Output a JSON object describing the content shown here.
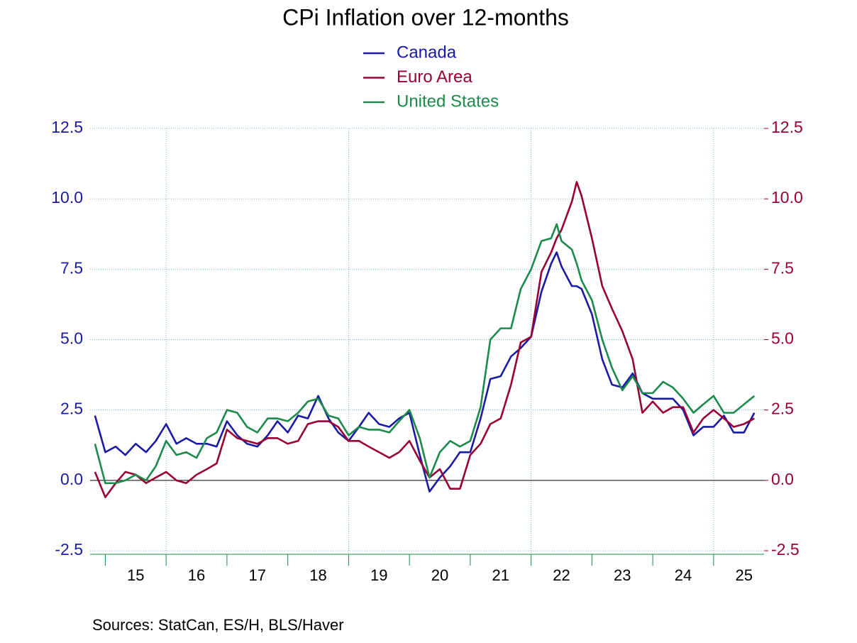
{
  "chart_data": {
    "type": "line",
    "title": "CPi Inflation over 12-months",
    "source": "Sources:  StatCan, ES/H, BLS/Haver",
    "x": [
      2014.83,
      2015.0,
      2015.17,
      2015.33,
      2015.5,
      2015.67,
      2015.83,
      2016.0,
      2016.17,
      2016.33,
      2016.5,
      2016.67,
      2016.83,
      2017.0,
      2017.17,
      2017.33,
      2017.5,
      2017.67,
      2017.83,
      2018.0,
      2018.17,
      2018.33,
      2018.5,
      2018.67,
      2018.83,
      2019.0,
      2019.17,
      2019.33,
      2019.5,
      2019.67,
      2019.83,
      2020.0,
      2020.17,
      2020.33,
      2020.5,
      2020.67,
      2020.83,
      2021.0,
      2021.17,
      2021.33,
      2021.5,
      2021.67,
      2021.83,
      2022.0,
      2022.17,
      2022.33,
      2022.42,
      2022.5,
      2022.67,
      2022.75,
      2022.83,
      2023.0,
      2023.17,
      2023.33,
      2023.5,
      2023.67,
      2023.83,
      2024.0,
      2024.17,
      2024.33,
      2024.5,
      2024.67,
      2024.83,
      2025.0,
      2025.17,
      2025.33,
      2025.5,
      2025.67
    ],
    "series": [
      {
        "name": "Canada",
        "color": "#1a1aa6",
        "values": [
          2.3,
          1.0,
          1.2,
          0.9,
          1.3,
          1.0,
          1.4,
          2.0,
          1.3,
          1.5,
          1.3,
          1.3,
          1.2,
          2.1,
          1.6,
          1.3,
          1.2,
          1.6,
          2.1,
          1.7,
          2.3,
          2.2,
          3.0,
          2.2,
          1.7,
          1.4,
          1.9,
          2.4,
          2.0,
          1.9,
          2.2,
          2.4,
          0.9,
          -0.4,
          0.1,
          0.5,
          1.0,
          1.0,
          2.2,
          3.6,
          3.7,
          4.4,
          4.7,
          5.1,
          6.7,
          7.7,
          8.1,
          7.6,
          6.9,
          6.9,
          6.8,
          5.9,
          4.3,
          3.4,
          3.3,
          3.8,
          3.1,
          2.9,
          2.9,
          2.9,
          2.5,
          1.6,
          1.9,
          1.9,
          2.3,
          1.7,
          1.7,
          2.4
        ]
      },
      {
        "name": "Euro Area",
        "color": "#990033",
        "axis": "y2",
        "values": [
          0.3,
          -0.6,
          -0.1,
          0.3,
          0.2,
          -0.1,
          0.1,
          0.3,
          0.0,
          -0.1,
          0.2,
          0.4,
          0.6,
          1.8,
          1.5,
          1.4,
          1.3,
          1.5,
          1.5,
          1.3,
          1.4,
          2.0,
          2.1,
          2.1,
          1.9,
          1.4,
          1.4,
          1.2,
          1.0,
          0.8,
          1.0,
          1.4,
          0.7,
          0.1,
          0.4,
          -0.3,
          -0.3,
          0.9,
          1.3,
          2.0,
          2.2,
          3.4,
          4.9,
          5.1,
          7.4,
          8.1,
          8.6,
          8.9,
          9.9,
          10.6,
          10.1,
          8.6,
          6.9,
          6.1,
          5.3,
          4.3,
          2.4,
          2.8,
          2.4,
          2.6,
          2.6,
          1.7,
          2.2,
          2.5,
          2.2,
          1.9,
          2.0,
          2.2
        ]
      },
      {
        "name": "United States",
        "color": "#1b8a4a",
        "values": [
          1.3,
          -0.1,
          -0.1,
          0.0,
          0.2,
          0.0,
          0.5,
          1.4,
          0.9,
          1.0,
          0.8,
          1.5,
          1.7,
          2.5,
          2.4,
          1.9,
          1.7,
          2.2,
          2.2,
          2.1,
          2.4,
          2.8,
          2.9,
          2.3,
          2.2,
          1.6,
          1.9,
          1.8,
          1.8,
          1.7,
          2.1,
          2.5,
          1.5,
          0.1,
          1.0,
          1.4,
          1.2,
          1.4,
          2.6,
          5.0,
          5.4,
          5.4,
          6.8,
          7.5,
          8.5,
          8.6,
          9.1,
          8.5,
          8.2,
          7.7,
          7.1,
          6.4,
          5.0,
          4.0,
          3.2,
          3.7,
          3.1,
          3.1,
          3.5,
          3.3,
          2.9,
          2.4,
          2.7,
          3.0,
          2.4,
          2.4,
          2.7,
          3.0
        ]
      }
    ],
    "xlim": [
      2014.75,
      2025.83
    ],
    "xticks": [
      {
        "value": 2015.5,
        "label": "15"
      },
      {
        "value": 2016.5,
        "label": "16"
      },
      {
        "value": 2017.5,
        "label": "17"
      },
      {
        "value": 2018.5,
        "label": "18"
      },
      {
        "value": 2019.5,
        "label": "19"
      },
      {
        "value": 2020.5,
        "label": "20"
      },
      {
        "value": 2021.5,
        "label": "21"
      },
      {
        "value": 2022.5,
        "label": "22"
      },
      {
        "value": 2023.5,
        "label": "23"
      },
      {
        "value": 2024.5,
        "label": "24"
      },
      {
        "value": 2025.5,
        "label": "25"
      }
    ],
    "x_minor_ticks": [
      2015,
      2016,
      2017,
      2018,
      2019,
      2020,
      2021,
      2022,
      2023,
      2024,
      2025
    ],
    "x_grid": [
      2016,
      2019,
      2022,
      2025
    ],
    "ylim": [
      -2.5,
      12.5
    ],
    "yticks": [
      {
        "value": -2.5,
        "label": "-2.5"
      },
      {
        "value": 0,
        "label": "0.0"
      },
      {
        "value": 2.5,
        "label": "2.5"
      },
      {
        "value": 5,
        "label": "5.0"
      },
      {
        "value": 7.5,
        "label": "7.5"
      },
      {
        "value": 10,
        "label": "10.0"
      },
      {
        "value": 12.5,
        "label": "12.5"
      }
    ],
    "y2lim": [
      -2.5,
      12.5
    ],
    "y2ticks": [
      {
        "value": -2.5,
        "label": "-2.5"
      },
      {
        "value": 0,
        "label": "0.0"
      },
      {
        "value": 2.5,
        "label": "2.5"
      },
      {
        "value": 5,
        "label": "5.0"
      },
      {
        "value": 7.5,
        "label": "7.5"
      },
      {
        "value": 10,
        "label": "10.0"
      },
      {
        "value": 12.5,
        "label": "12.5"
      }
    ],
    "grid": true
  }
}
